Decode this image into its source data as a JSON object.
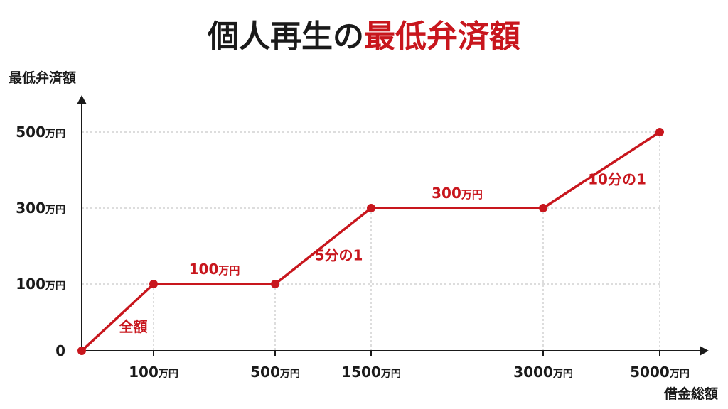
{
  "chart_data": {
    "type": "line",
    "title_prefix": "個人再生の",
    "title_highlight": "最低弁済額",
    "ylabel": "最低弁済額",
    "xlabel": "借金総額",
    "unit": "万円",
    "x_ticks": [
      {
        "value": 100,
        "label": "100"
      },
      {
        "value": 500,
        "label": "500"
      },
      {
        "value": 1500,
        "label": "1500"
      },
      {
        "value": 3000,
        "label": "3000"
      },
      {
        "value": 5000,
        "label": "5000"
      }
    ],
    "y_ticks": [
      {
        "value": 0,
        "label": "0",
        "unit": ""
      },
      {
        "value": 100,
        "label": "100",
        "unit": "万円"
      },
      {
        "value": 300,
        "label": "300",
        "unit": "万円"
      },
      {
        "value": 500,
        "label": "500",
        "unit": "万円"
      }
    ],
    "points": [
      {
        "x": 0,
        "y": 0
      },
      {
        "x": 100,
        "y": 100
      },
      {
        "x": 500,
        "y": 100
      },
      {
        "x": 1500,
        "y": 300
      },
      {
        "x": 3000,
        "y": 300
      },
      {
        "x": 5000,
        "y": 500
      }
    ],
    "segment_labels": [
      {
        "segment": 0,
        "text": "全額",
        "unit": ""
      },
      {
        "segment": 1,
        "text": "100",
        "unit": "万円"
      },
      {
        "segment": 2,
        "text": "5分の1",
        "unit": ""
      },
      {
        "segment": 3,
        "text": "300",
        "unit": "万円"
      },
      {
        "segment": 4,
        "text": "10分の1",
        "unit": ""
      }
    ],
    "grid": "dotted",
    "line_color": "#c8161d",
    "text_color": "#1a1a1a"
  }
}
